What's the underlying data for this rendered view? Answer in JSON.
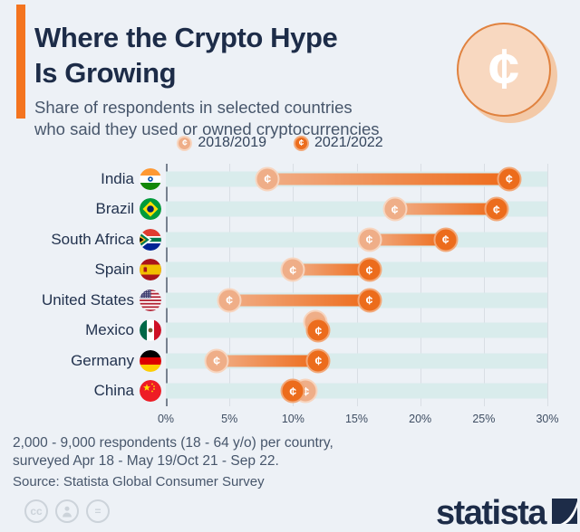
{
  "title": {
    "line1": "Where the Crypto Hype",
    "line2": "Is Growing"
  },
  "subtitle": {
    "line1": "Share of respondents in selected countries",
    "line2": "who said they used or owned cryptocurrencies"
  },
  "legend": {
    "items": [
      {
        "label": "2018/2019",
        "coin": "light"
      },
      {
        "label": "2021/2022",
        "coin": "dark"
      }
    ]
  },
  "chart_data": {
    "type": "dumbbell",
    "categories": [
      "India",
      "Brazil",
      "South Africa",
      "Spain",
      "United States",
      "Mexico",
      "Germany",
      "China"
    ],
    "series": [
      {
        "name": "2018/2019",
        "values": [
          8,
          18,
          16,
          10,
          5,
          12,
          4,
          11
        ]
      },
      {
        "name": "2021/2022",
        "values": [
          27,
          26,
          22,
          16,
          16,
          12,
          12,
          10
        ]
      }
    ],
    "xlim": [
      0,
      30
    ],
    "tick_labels": [
      "0%",
      "5%",
      "10%",
      "15%",
      "20%",
      "25%",
      "30%"
    ],
    "unit": "%",
    "grid": "vertical",
    "legend_position": "top-center"
  },
  "icons": {
    "coin_glyph": "¢",
    "cc_glyph": "cc",
    "nd_glyph": "="
  },
  "footer": {
    "line1": "2,000 - 9,000 respondents (18 - 64 y/o) per country,",
    "line2": "surveyed Apr 18 - May 19/Oct 21 - Sep 22.",
    "source": "Source: Statista Global Consumer Survey"
  },
  "branding": {
    "logo_text": "statista"
  },
  "colors": {
    "background": "#edf1f6",
    "accent_orange": "#f4741f",
    "navy": "#1d2c48",
    "subtitle_gray": "#47566b",
    "band_teal": "#d9ecec",
    "coin_light": "#efae88",
    "coin_dark": "#ec6c1c",
    "bar_gradient_light": "#f0ad85",
    "bar_gradient_dark": "#ee6c1b"
  }
}
